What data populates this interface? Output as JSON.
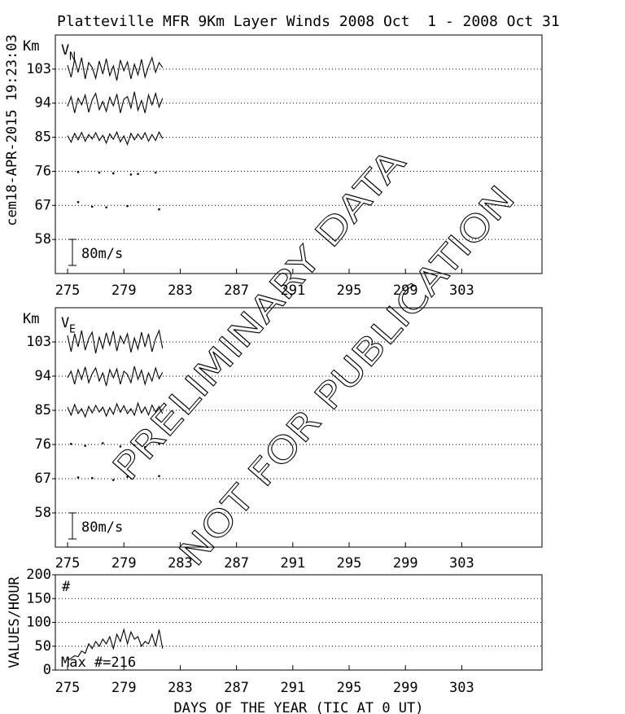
{
  "header": {
    "title": "Platteville MFR 9Km Layer Winds 2008 Oct  1 - 2008 Oct 31",
    "stamp": "cem18-APR-2015 19:23:03"
  },
  "watermark": [
    "PRELIMINARY DATA",
    "NOT FOR PUBLICATION"
  ],
  "chart_data": [
    {
      "type": "line",
      "unit_label": "Km",
      "component": {
        "main": "V",
        "sub": "N"
      },
      "scale_bar": {
        "value": 80,
        "label": "80m/s"
      },
      "xlim": [
        274.13,
        308.7
      ],
      "xticks": [
        275,
        279,
        283,
        287,
        291,
        295,
        299,
        303
      ],
      "ylim": [
        49,
        112
      ],
      "yticks": [
        58,
        67,
        76,
        85,
        94,
        103
      ],
      "grid": true,
      "color": "#000000",
      "x": [
        275,
        275.25,
        275.5,
        275.75,
        276,
        276.25,
        276.5,
        276.75,
        277,
        277.25,
        277.5,
        277.75,
        278,
        278.25,
        278.5,
        278.75,
        279,
        279.25,
        279.5,
        279.75,
        280,
        280.25,
        280.5,
        280.75,
        281,
        281.25,
        281.5,
        281.75
      ],
      "series": [
        {
          "level": 103,
          "values": [
            12,
            -25,
            30,
            -10,
            35,
            -30,
            20,
            5,
            -28,
            25,
            -15,
            32,
            -20,
            10,
            -35,
            28,
            -5,
            22,
            -30,
            15,
            -18,
            30,
            -25,
            8,
            35,
            -10,
            20,
            5
          ]
        },
        {
          "level": 94,
          "values": [
            -10,
            20,
            -30,
            15,
            -5,
            25,
            -28,
            10,
            30,
            -20,
            5,
            -25,
            18,
            -8,
            28,
            -30,
            12,
            20,
            -15,
            35,
            -22,
            8,
            -30,
            25,
            -5,
            30,
            -12,
            15
          ]
        },
        {
          "level": 85,
          "values": [
            5,
            -15,
            12,
            -8,
            15,
            -12,
            8,
            -5,
            14,
            -10,
            6,
            -18,
            10,
            -6,
            16,
            -14,
            4,
            -22,
            12,
            -8,
            10,
            -6,
            14,
            -12,
            8,
            -10,
            16,
            -4
          ]
        },
        {
          "level": 76,
          "values": [
            null,
            null,
            null,
            -2,
            null,
            null,
            null,
            null,
            null,
            -4,
            null,
            null,
            null,
            -6,
            null,
            null,
            null,
            null,
            -10,
            null,
            -8,
            null,
            null,
            null,
            null,
            -4,
            null,
            null
          ]
        },
        {
          "level": 67,
          "values": [
            null,
            null,
            null,
            10,
            null,
            null,
            null,
            -4,
            null,
            null,
            null,
            -6,
            null,
            null,
            null,
            null,
            null,
            -2,
            null,
            null,
            null,
            null,
            null,
            null,
            null,
            null,
            -12,
            null
          ]
        }
      ]
    },
    {
      "type": "line",
      "unit_label": "Km",
      "component": {
        "main": "V",
        "sub": "E"
      },
      "scale_bar": {
        "value": 80,
        "label": "80m/s"
      },
      "xlim": [
        274.13,
        308.7
      ],
      "xticks": [
        275,
        279,
        283,
        287,
        291,
        295,
        299,
        303
      ],
      "ylim": [
        49,
        112
      ],
      "yticks": [
        58,
        67,
        76,
        85,
        94,
        103
      ],
      "grid": true,
      "color": "#000000",
      "x": [
        275,
        275.25,
        275.5,
        275.75,
        276,
        276.25,
        276.5,
        276.75,
        277,
        277.25,
        277.5,
        277.75,
        278,
        278.25,
        278.5,
        278.75,
        279,
        279.25,
        279.5,
        279.75,
        280,
        280.25,
        280.5,
        280.75,
        281,
        281.25,
        281.5,
        281.75
      ],
      "series": [
        {
          "level": 103,
          "values": [
            20,
            -30,
            25,
            -15,
            35,
            -25,
            10,
            30,
            -35,
            15,
            -20,
            28,
            -10,
            33,
            -28,
            18,
            -5,
            25,
            -32,
            12,
            -22,
            30,
            -15,
            25,
            -30,
            10,
            35,
            -20
          ]
        },
        {
          "level": 94,
          "values": [
            -5,
            15,
            -25,
            20,
            -10,
            28,
            -20,
            8,
            25,
            -15,
            10,
            -30,
            20,
            -5,
            22,
            -25,
            15,
            5,
            -20,
            30,
            -10,
            18,
            -25,
            10,
            -15,
            25,
            -8,
            12
          ]
        },
        {
          "level": 85,
          "values": [
            10,
            -15,
            18,
            -10,
            5,
            -20,
            12,
            -8,
            15,
            -5,
            10,
            -18,
            8,
            -12,
            20,
            -6,
            14,
            -10,
            5,
            -15,
            22,
            -8,
            10,
            -14,
            16,
            -5,
            12,
            -10
          ]
        },
        {
          "level": 76,
          "values": [
            null,
            2,
            null,
            null,
            null,
            -4,
            null,
            null,
            null,
            null,
            4,
            null,
            null,
            null,
            null,
            -6,
            null,
            null,
            null,
            -2,
            null,
            null,
            -8,
            null,
            null,
            null,
            2,
            null
          ]
        },
        {
          "level": 67,
          "values": [
            null,
            null,
            null,
            4,
            null,
            null,
            null,
            2,
            null,
            null,
            null,
            null,
            null,
            -4,
            null,
            null,
            null,
            6,
            null,
            null,
            null,
            null,
            null,
            null,
            null,
            null,
            8,
            null
          ]
        }
      ]
    },
    {
      "type": "line",
      "ylabel": "VALUES/HOUR",
      "marker": "#",
      "note": "Max #=216",
      "xlabel": "DAYS OF THE YEAR (TIC AT 0 UT)",
      "xlim": [
        274.13,
        308.7
      ],
      "xticks": [
        275,
        279,
        283,
        287,
        291,
        295,
        299,
        303
      ],
      "ylim": [
        0,
        200
      ],
      "yticks": [
        0,
        50,
        100,
        150,
        200
      ],
      "grid": true,
      "color": "#000000",
      "x": [
        275,
        275.25,
        275.5,
        275.75,
        276,
        276.25,
        276.5,
        276.75,
        277,
        277.25,
        277.5,
        277.75,
        278,
        278.25,
        278.5,
        278.75,
        279,
        279.25,
        279.5,
        279.75,
        280,
        280.25,
        280.5,
        280.75,
        281,
        281.25,
        281.5,
        281.75
      ],
      "values": [
        20,
        25,
        30,
        28,
        40,
        35,
        55,
        45,
        60,
        50,
        65,
        55,
        70,
        45,
        75,
        60,
        85,
        55,
        80,
        65,
        70,
        50,
        60,
        55,
        75,
        50,
        85,
        45
      ]
    }
  ]
}
